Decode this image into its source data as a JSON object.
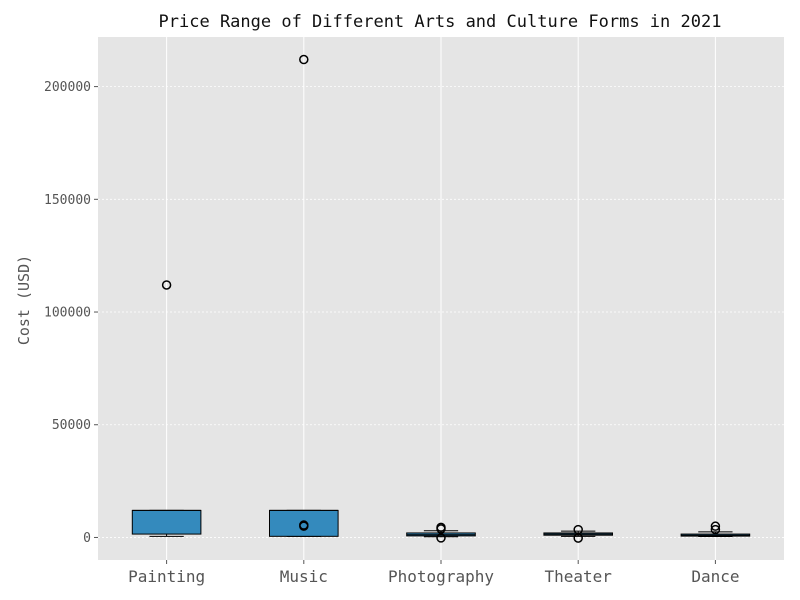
{
  "chart_data": {
    "type": "box",
    "title": "Price Range of Different Arts and Culture Forms in 2021",
    "xlabel": "",
    "ylabel": "Cost (USD)",
    "ylim": [
      -10000,
      222000
    ],
    "yticks": [
      0,
      50000,
      100000,
      150000,
      200000
    ],
    "ytick_labels": [
      "0",
      "50000",
      "100000",
      "150000",
      "200000"
    ],
    "grid": true,
    "colors": {
      "background": "#E5E5E5",
      "box": "#348ABD",
      "grid": "#FFFFFF"
    },
    "categories": [
      "Painting",
      "Music",
      "Photography",
      "Theater",
      "Dance"
    ],
    "boxes": [
      {
        "category": "Painting",
        "whisker_low": 500,
        "q1": 1500,
        "median": 12000,
        "q3": 12000,
        "whisker_high": 12000,
        "outliers": [
          112000
        ]
      },
      {
        "category": "Music",
        "whisker_low": 500,
        "q1": 500,
        "median": 12000,
        "q3": 12000,
        "whisker_high": 12000,
        "outliers": [
          5000,
          5500,
          212000
        ]
      },
      {
        "category": "Photography",
        "whisker_low": 300,
        "q1": 700,
        "median": 1200,
        "q3": 2000,
        "whisker_high": 3000,
        "outliers": [
          -200,
          3800,
          4500
        ]
      },
      {
        "category": "Theater",
        "whisker_low": 500,
        "q1": 1000,
        "median": 1500,
        "q3": 2000,
        "whisker_high": 2800,
        "outliers": [
          -300,
          3500
        ]
      },
      {
        "category": "Dance",
        "whisker_low": 400,
        "q1": 600,
        "median": 1000,
        "q3": 1500,
        "whisker_high": 2500,
        "outliers": [
          3500,
          5000
        ]
      }
    ]
  }
}
